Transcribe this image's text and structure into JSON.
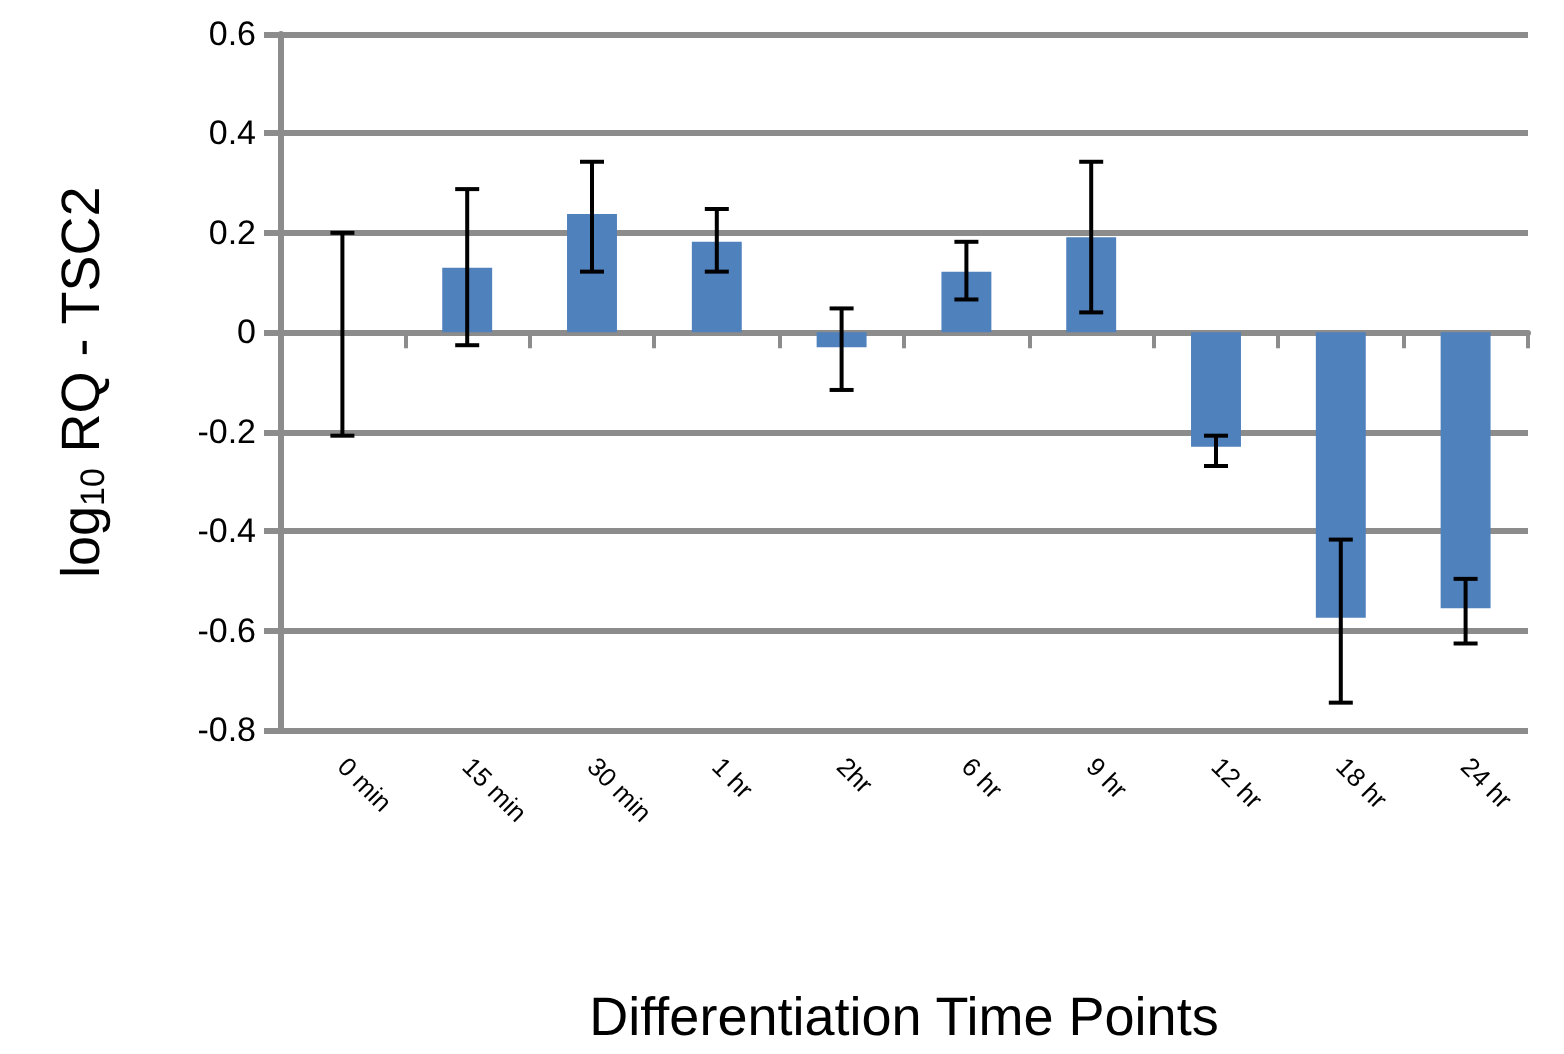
{
  "chart_data": {
    "type": "bar",
    "xlabel": "Differentiation Time Points",
    "ylabel": "log$_{10}$ RQ - TSC2",
    "categories": [
      "0 min",
      "15 min",
      "30 min",
      "1 hr",
      "2hr",
      "6 hr",
      "9 hr",
      "12 hr",
      "18 hr",
      "24 hr"
    ],
    "values": [
      0,
      0.13,
      0.238,
      0.182,
      -0.03,
      0.122,
      0.191,
      -0.23,
      -0.574,
      -0.555
    ],
    "errors": [
      [
        -0.208,
        0.2
      ],
      [
        -0.026,
        0.288
      ],
      [
        0.122,
        0.343
      ],
      [
        0.122,
        0.248
      ],
      [
        -0.116,
        0.048
      ],
      [
        0.066,
        0.182
      ],
      [
        0.04,
        0.343
      ],
      [
        -0.269,
        -0.208
      ],
      [
        -0.745,
        -0.417
      ],
      [
        -0.626,
        -0.496
      ]
    ],
    "color": "#4f81bd",
    "ylim": [
      -0.8,
      0.6
    ],
    "yticks": [
      -0.8,
      -0.6,
      -0.4,
      -0.2,
      0,
      0.2,
      0.4,
      0.6
    ],
    "grid": "y"
  }
}
